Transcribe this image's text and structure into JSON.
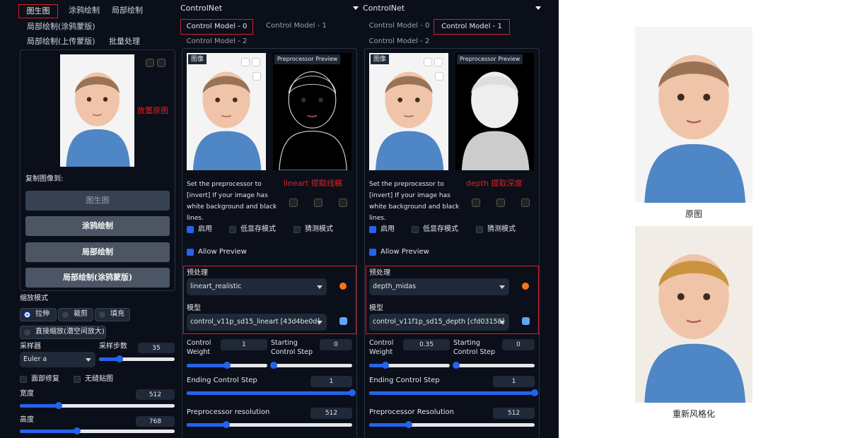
{
  "left": {
    "tabs": [
      "图生图",
      "涂鸦绘制",
      "局部绘制",
      "局部绘制(涂鸦蒙版)",
      "局部绘制(上传蒙版)",
      "批量处理"
    ],
    "annotation": "放置原图",
    "copy_label": "复制图像到:",
    "copy_buttons": [
      "图生图",
      "涂鸦绘制",
      "局部绘制",
      "局部绘制(涂鸦蒙版)"
    ],
    "resize_label": "缩放模式",
    "resize_modes": [
      "拉伸",
      "裁剪",
      "填充",
      "直接缩放(潜空间放大)"
    ],
    "resize_selected": 0,
    "sampler_label": "采样器",
    "sampler": "Euler a",
    "steps_label": "采样步数",
    "steps": 35,
    "checkboxes": [
      "面部修复",
      "无缝贴图"
    ],
    "width_label": "宽度",
    "width": 512,
    "height_label": "高度",
    "height": 768
  },
  "controlnets": [
    {
      "title": "ControlNet",
      "tabs": [
        "Control Model - 0",
        "Control Model - 1",
        "Control Model - 2"
      ],
      "active_tab": 0,
      "image_label": "图像",
      "preview_label": "Preprocessor Preview",
      "hint": "Set the preprocessor to [invert] If your image has white background and black lines.",
      "annotation": "lineart 提取线稿",
      "checkboxes": [
        "启用",
        "低显存模式",
        "猜测模式"
      ],
      "checked": [
        true,
        false,
        false
      ],
      "allow_preview": "Allow Preview",
      "preprocessor_label": "预处理",
      "preprocessor": "lineart_realistic",
      "model_label": "模型",
      "model": "control_v11p_sd15_lineart [43d4be0d]",
      "weight_label": "Control Weight",
      "weight": 1,
      "start_label": "Starting Control Step",
      "start": 0,
      "end_label": "Ending Control Step",
      "end": 1,
      "resolution_label": "Preprocessor resolution",
      "resolution": 512
    },
    {
      "title": "ControlNet",
      "tabs": [
        "Control Model - 0",
        "Control Model - 1",
        "Control Model - 2"
      ],
      "active_tab": 1,
      "image_label": "图像",
      "preview_label": "Preprocessor Preview",
      "hint": "Set the preprocessor to [invert] If your image has white background and black lines.",
      "annotation": "depth 提取深度",
      "checkboxes": [
        "启用",
        "低显存模式",
        "猜测模式"
      ],
      "checked": [
        true,
        false,
        false
      ],
      "allow_preview": "Allow Preview",
      "preprocessor_label": "预处理",
      "preprocessor": "depth_midas",
      "model_label": "模型",
      "model": "control_v11f1p_sd15_depth [cfd03158]",
      "weight_label": "Control Weight",
      "weight": 0.35,
      "start_label": "Starting Control Step",
      "start": 0,
      "end_label": "Ending Control Step",
      "end": 1,
      "resolution_label": "Preprocessor Resolution",
      "resolution": 512
    }
  ],
  "results": {
    "original_caption": "原图",
    "restyled_caption": "重新风格化"
  }
}
